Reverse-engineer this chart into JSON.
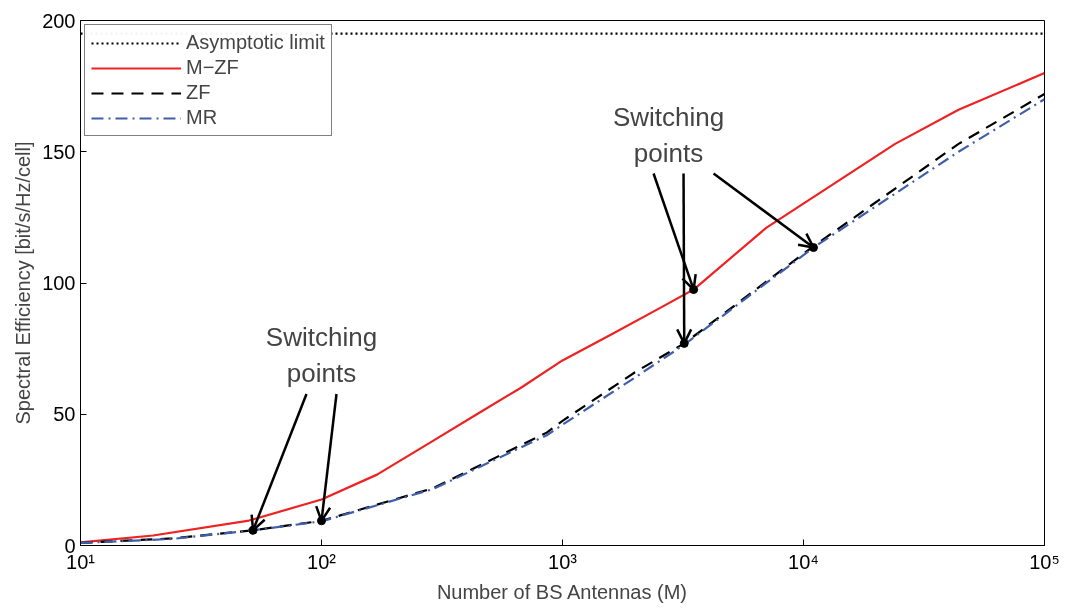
{
  "chart_data": {
    "type": "line",
    "xlabel": "Number of BS Antennas (M)",
    "ylabel": "Spectral Efficiency [bit/s/Hz/cell]",
    "log": "x",
    "grid": false,
    "legend": "top left",
    "xlim": [
      10,
      100000
    ],
    "ylim": [
      0,
      200
    ],
    "xticks": [
      {
        "value": 10,
        "label": "10¹"
      },
      {
        "value": 100,
        "label": "10²"
      },
      {
        "value": 1000,
        "label": "10³"
      },
      {
        "value": 10000,
        "label": "10⁴"
      },
      {
        "value": 100000,
        "label": "10⁵"
      }
    ],
    "yticks": [
      0,
      50,
      100,
      150,
      200
    ],
    "series": [
      {
        "name": "Asymptotic limit",
        "color": "#000000",
        "line_style": "dotted",
        "x": [
          10,
          100000
        ],
        "values": [
          195,
          195
        ]
      },
      {
        "name": "M−ZF",
        "color": "#ee2222",
        "line_style": "solid",
        "x": [
          10,
          20,
          50,
          100,
          170,
          280,
          450,
          670,
          1000,
          1600,
          2600,
          3500,
          7000,
          12000,
          24000,
          44000,
          100000
        ],
        "values": [
          1.2,
          3.8,
          9.5,
          17.5,
          27,
          39,
          50.5,
          60,
          70.5,
          80.5,
          91,
          97.5,
          121,
          135,
          153,
          166,
          180
        ]
      },
      {
        "name": "ZF",
        "color": "#000000",
        "line_style": "dashed",
        "x": [
          10,
          24,
          52,
          100,
          290,
          860,
          1000,
          2000,
          3200,
          11000,
          44000,
          100000
        ],
        "values": [
          1.0,
          2.7,
          5.8,
          9.4,
          21.8,
          43,
          47.5,
          66,
          77,
          114,
          153,
          172
        ]
      },
      {
        "name": "MR",
        "color": "#3f5faa",
        "line_style": "dashdot",
        "x": [
          10,
          24,
          52,
          100,
          290,
          860,
          1000,
          2000,
          3200,
          11000,
          44000,
          100000
        ],
        "values": [
          1.0,
          2.5,
          5.8,
          9.2,
          21.5,
          42,
          46,
          64,
          76.5,
          113.5,
          150,
          170
        ]
      },
      {
        "type": "scatter",
        "marker": "circle",
        "color": "#000000",
        "x": [
          52,
          100,
          3500,
          3200,
          11000
        ],
        "values": [
          5.8,
          9.4,
          97.5,
          77,
          113.5
        ]
      }
    ],
    "annotations": [
      {
        "text": "Switching\npoints",
        "x": 52,
        "y": 5.8
      },
      {
        "text": "Switching\npoints",
        "x": 3500,
        "y": 97.5
      }
    ]
  }
}
